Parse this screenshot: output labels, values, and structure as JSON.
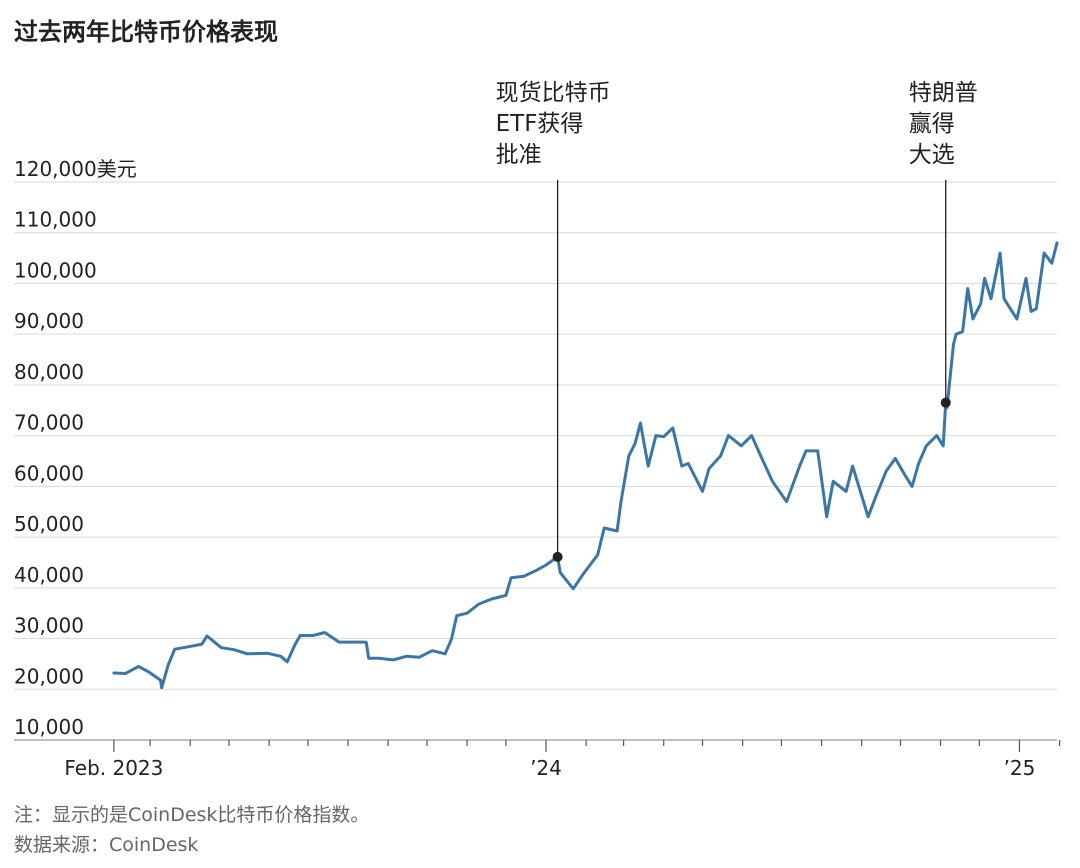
{
  "header": {
    "title": "过去两年比特币价格表现"
  },
  "footer": {
    "note": "注：显示的是CoinDesk比特币价格指数。",
    "source": "数据来源：CoinDesk"
  },
  "colors": {
    "line": "#3a76a6",
    "grid": "#d9d9d9",
    "annotation": "#222222"
  },
  "chart_data": {
    "type": "line",
    "title": "过去两年比特币价格表现",
    "ylabel": "",
    "xlabel": "",
    "y_unit_suffix": "美元",
    "ylim": [
      10000,
      120000
    ],
    "y_ticks": [
      10000,
      20000,
      30000,
      40000,
      50000,
      60000,
      70000,
      80000,
      90000,
      100000,
      110000,
      120000
    ],
    "y_tick_labels": [
      "10,000",
      "20,000",
      "30,000",
      "40,000",
      "50,000",
      "60,000",
      "70,000",
      "80,000",
      "90,000",
      "100,000",
      "110,000",
      "120,000美元"
    ],
    "xlim": [
      "2023-01-29",
      "2025-01-30"
    ],
    "x_labels": [
      {
        "date": "2023-02-01",
        "text": "Feb. 2023"
      },
      {
        "date": "2024-01-01",
        "text": "’24"
      },
      {
        "date": "2025-01-01",
        "text": "’25"
      }
    ],
    "grid": true,
    "annotations": [
      {
        "date": "2024-01-10",
        "value": 46100,
        "lines": [
          "现货比特币",
          "ETF获得",
          "批准"
        ]
      },
      {
        "date": "2024-11-05",
        "value": 76500,
        "lines": [
          "特朗普",
          "赢得",
          "大选"
        ]
      }
    ],
    "series": [
      {
        "x": [
          "2023-02-01",
          "2023-02-10",
          "2023-02-20",
          "2023-02-28",
          "2023-03-09",
          "2023-03-10",
          "2023-03-12",
          "2023-03-15",
          "2023-03-20",
          "2023-03-31",
          "2023-04-10",
          "2023-04-14",
          "2023-04-25",
          "2023-05-05",
          "2023-05-15",
          "2023-05-31",
          "2023-06-10",
          "2023-06-15",
          "2023-06-21",
          "2023-06-25",
          "2023-07-05",
          "2023-07-14",
          "2023-07-25",
          "2023-08-05",
          "2023-08-15",
          "2023-08-17",
          "2023-08-25",
          "2023-09-05",
          "2023-09-15",
          "2023-09-25",
          "2023-10-05",
          "2023-10-15",
          "2023-10-20",
          "2023-10-24",
          "2023-11-01",
          "2023-11-10",
          "2023-11-20",
          "2023-12-01",
          "2023-12-05",
          "2023-12-15",
          "2023-12-25",
          "2024-01-01",
          "2024-01-10",
          "2024-01-12",
          "2024-01-22",
          "2024-01-30",
          "2024-02-10",
          "2024-02-15",
          "2024-02-25",
          "2024-02-28",
          "2024-03-05",
          "2024-03-10",
          "2024-03-14",
          "2024-03-20",
          "2024-03-26",
          "2024-04-01",
          "2024-04-08",
          "2024-04-15",
          "2024-04-20",
          "2024-05-01",
          "2024-05-06",
          "2024-05-15",
          "2024-05-21",
          "2024-05-31",
          "2024-06-08",
          "2024-06-15",
          "2024-06-24",
          "2024-07-05",
          "2024-07-15",
          "2024-07-20",
          "2024-07-29",
          "2024-08-05",
          "2024-08-10",
          "2024-08-20",
          "2024-08-25",
          "2024-09-06",
          "2024-09-12",
          "2024-09-20",
          "2024-09-27",
          "2024-10-05",
          "2024-10-10",
          "2024-10-15",
          "2024-10-21",
          "2024-10-29",
          "2024-11-03",
          "2024-11-05",
          "2024-11-06",
          "2024-11-11",
          "2024-11-13",
          "2024-11-18",
          "2024-11-22",
          "2024-11-26",
          "2024-12-02",
          "2024-12-05",
          "2024-12-10",
          "2024-12-17",
          "2024-12-20",
          "2024-12-25",
          "2024-12-30",
          "2025-01-06",
          "2025-01-10",
          "2025-01-14",
          "2025-01-20",
          "2025-01-26",
          "2025-01-30"
        ],
        "values": [
          23200,
          23100,
          24500,
          23400,
          21800,
          20300,
          22100,
          24800,
          27900,
          28400,
          28900,
          30500,
          28200,
          27800,
          27000,
          27100,
          26500,
          25400,
          28800,
          30600,
          30600,
          31200,
          29300,
          29300,
          29300,
          26100,
          26100,
          25800,
          26500,
          26300,
          27600,
          27000,
          29900,
          34500,
          35000,
          36800,
          37800,
          38500,
          42000,
          42300,
          43500,
          44500,
          46100,
          43000,
          39800,
          42800,
          46500,
          51800,
          51200,
          57000,
          66000,
          68500,
          72500,
          64000,
          70000,
          69800,
          71500,
          64000,
          64500,
          59000,
          63500,
          66000,
          70000,
          68000,
          70000,
          66000,
          61000,
          57000,
          64000,
          67000,
          67000,
          54000,
          61000,
          59000,
          64000,
          54000,
          58000,
          63000,
          65500,
          62000,
          60000,
          64500,
          68000,
          70000,
          68000,
          76500,
          75500,
          88000,
          90000,
          90500,
          99000,
          93000,
          96000,
          101000,
          97000,
          106000,
          97000,
          95000,
          93000,
          101000,
          94500,
          95000,
          106000,
          104000,
          108000
        ]
      }
    ]
  }
}
